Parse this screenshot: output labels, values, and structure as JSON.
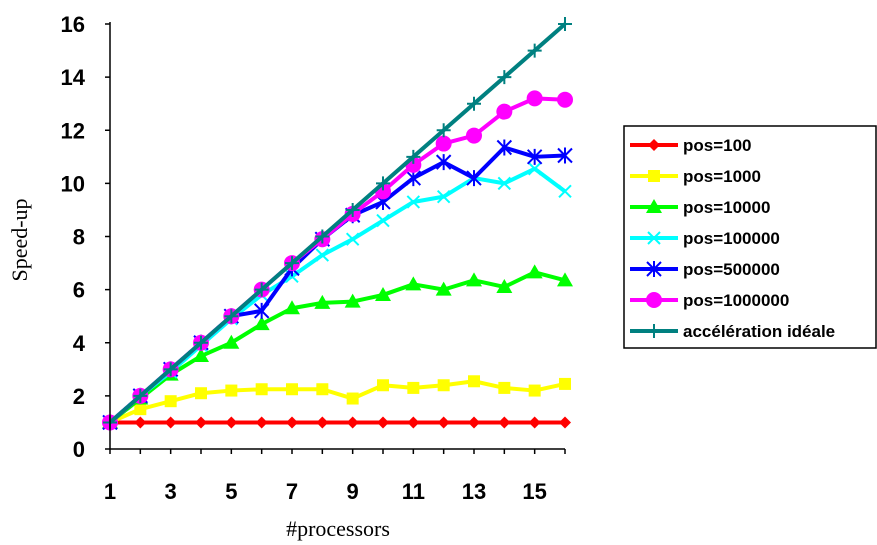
{
  "chart_data": {
    "type": "line",
    "title": "",
    "xlabel": "#processors",
    "ylabel": "Speed-up",
    "x": [
      1,
      2,
      3,
      4,
      5,
      6,
      7,
      8,
      9,
      10,
      11,
      12,
      13,
      14,
      15,
      16
    ],
    "x_tick_labels": [
      "1",
      "3",
      "5",
      "7",
      "9",
      "11",
      "13",
      "15"
    ],
    "x_ticks": [
      1,
      3,
      5,
      7,
      9,
      11,
      13,
      15
    ],
    "y_tick_labels": [
      "0",
      "2",
      "4",
      "6",
      "8",
      "10",
      "12",
      "14",
      "16"
    ],
    "y_ticks": [
      0,
      2,
      4,
      6,
      8,
      10,
      12,
      14,
      16
    ],
    "xlim": [
      1,
      16
    ],
    "ylim": [
      0,
      16
    ],
    "grid": false,
    "legend_position": "right",
    "series": [
      {
        "name": "pos=100",
        "color": "#ff0000",
        "marker": "diamond",
        "values": [
          1,
          1,
          1,
          1,
          1,
          1,
          1,
          1,
          1,
          1,
          1,
          1,
          1,
          1,
          1,
          1
        ]
      },
      {
        "name": "pos=1000",
        "color": "#ffff00",
        "marker": "square",
        "values": [
          1,
          1.5,
          1.8,
          2.1,
          2.2,
          2.25,
          2.25,
          2.25,
          1.9,
          2.4,
          2.3,
          2.4,
          2.55,
          2.3,
          2.2,
          2.45
        ]
      },
      {
        "name": "pos=10000",
        "color": "#00ff00",
        "marker": "triangle",
        "values": [
          1,
          1.9,
          2.8,
          3.5,
          4.0,
          4.7,
          5.3,
          5.5,
          5.55,
          5.8,
          6.2,
          6.0,
          6.35,
          6.1,
          6.65,
          6.35
        ]
      },
      {
        "name": "pos=100000",
        "color": "#00ffff",
        "marker": "x",
        "values": [
          1,
          2,
          2.9,
          3.9,
          4.9,
          5.8,
          6.5,
          7.3,
          7.9,
          8.6,
          9.3,
          9.5,
          10.2,
          10.0,
          10.55,
          9.7
        ]
      },
      {
        "name": "pos=500000",
        "color": "#0000ff",
        "marker": "star",
        "values": [
          1,
          2,
          3,
          4,
          5,
          5.2,
          6.8,
          7.9,
          8.8,
          9.3,
          10.2,
          10.8,
          10.2,
          11.35,
          11.0,
          11.05
        ]
      },
      {
        "name": "pos=1000000",
        "color": "#ff00ff",
        "marker": "circle",
        "values": [
          1,
          2,
          3,
          4,
          5,
          6,
          7,
          7.9,
          8.85,
          9.7,
          10.7,
          11.5,
          11.8,
          12.7,
          13.2,
          13.15
        ]
      },
      {
        "name": "accélération idéale",
        "color": "#008080",
        "marker": "plus",
        "values": [
          1,
          2,
          3,
          4,
          5,
          6,
          7,
          8,
          9,
          10,
          11,
          12,
          13,
          14,
          15,
          16
        ]
      }
    ]
  }
}
